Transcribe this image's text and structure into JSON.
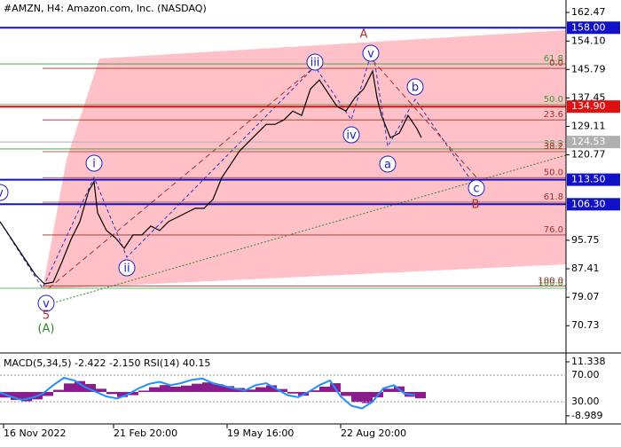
{
  "chart_data": {
    "type": "line",
    "title": "#AMZN, H4:  Amazon.com, Inc. (NASDAQ)",
    "series": [
      {
        "color": "#000000",
        "x": [
          0,
          2.5,
          5,
          7.5,
          10,
          12.5,
          15,
          17.5,
          20,
          22.5,
          25,
          26.5,
          27.5,
          30,
          32.5,
          35,
          37.5,
          40,
          42.5,
          45,
          47.5,
          50,
          52.5,
          55,
          57.5,
          60,
          62.5,
          65,
          67.5,
          70,
          72.5,
          75,
          77.5,
          80,
          82.5,
          85,
          87.5,
          90,
          92.5,
          95,
          97.5,
          100,
          102.5,
          105,
          106.25,
          107.5,
          110,
          112.5,
          115,
          117.5,
          118.75
        ],
        "values": [
          101.2,
          97.3,
          93.4,
          89.5,
          85.6,
          83.0,
          83.5,
          89.5,
          96.0,
          101.2,
          110.2,
          112.9,
          103.8,
          98.6,
          96.5,
          93.4,
          97.3,
          97.3,
          99.9,
          98.6,
          101.2,
          102.5,
          103.8,
          105.1,
          105.1,
          107.7,
          114.1,
          118.0,
          121.9,
          124.5,
          127.1,
          129.7,
          129.7,
          131.0,
          133.6,
          132.3,
          140.1,
          142.7,
          138.8,
          134.9,
          133.6,
          137.5,
          140.1,
          145.3,
          137.5,
          132.3,
          125.8,
          127.1,
          132.3,
          128.4,
          125.8
        ]
      }
    ],
    "xlim": [
      0,
      159.5
    ],
    "xticks": [
      {
        "value": 1,
        "label": "16 Nov 2022"
      },
      {
        "value": 32,
        "label": "21 Feb 20:00"
      },
      {
        "value": 64,
        "label": "19 May 16:00"
      },
      {
        "value": 96,
        "label": "22 Aug 20:00"
      }
    ],
    "ylim": [
      63.0,
      165.6
    ],
    "yticks": [
      162.47,
      {
        "value": 154.1,
        "label": "154.10"
      },
      145.79,
      137.45,
      129.11,
      120.77,
      95.75,
      87.41,
      79.07,
      70.73
    ],
    "levels": [
      {
        "value": 158,
        "label": "158.00",
        "color": "#1111c8"
      },
      {
        "value": 134.9,
        "label": "134.90",
        "color": "#e01010"
      },
      {
        "value": 124.53,
        "label": "124.53",
        "color": "#b0b0b0"
      },
      {
        "value": 113.5,
        "label": "113.50",
        "color": "#1111c8"
      },
      {
        "value": 106.3,
        "label": "106.30",
        "color": "#1111c8"
      }
    ],
    "fibo": [
      {
        "value": 147.4,
        "label": "61.8",
        "color": "#3a9a3a"
      },
      {
        "value": 135.5,
        "label": "50.0",
        "color": "#3a9a3a"
      },
      {
        "value": 122.5,
        "label": "38.2",
        "color": "#3a9a3a"
      },
      {
        "value": 81.7,
        "label": "100.0",
        "color": "#3a9a3a"
      },
      {
        "value": 146.1,
        "label": "0.0",
        "color": "#a0302a"
      },
      {
        "value": 131.0,
        "label": "23.6",
        "color": "#a0302a"
      },
      {
        "value": 121.7,
        "label": "38.2",
        "color": "#a0302a"
      },
      {
        "value": 114.1,
        "label": "50.0",
        "color": "#a0302a"
      },
      {
        "value": 106.9,
        "label": "61.8",
        "color": "#a0302a"
      },
      {
        "value": 97.3,
        "label": "76.0",
        "color": "#a0302a"
      },
      {
        "value": 82.4,
        "label": "100.0",
        "color": "#a0302a"
      }
    ],
    "waves": [
      "A",
      "v",
      "iii",
      "b",
      "iv",
      "a",
      "c",
      "B",
      "i",
      "ii",
      "v",
      "5",
      "(A)",
      "v"
    ],
    "indicator": {
      "title": "MACD(5,34,5) -2.422 -2.150 RSI(14) 40.15",
      "ylim": [
        -11.7,
        14.0
      ],
      "yticks": [
        11.338,
        -8.989
      ],
      "y2lim": [
        -2,
        100.7
      ],
      "y2ticks": [
        {
          "value": 70,
          "label": "70.00"
        },
        {
          "value": 30,
          "label": "30.00"
        }
      ],
      "x": [
        0,
        3,
        6,
        9,
        12,
        15,
        18,
        21,
        24,
        27,
        30,
        33,
        36,
        39,
        42,
        45,
        48,
        51,
        54,
        57,
        60,
        63,
        66,
        69,
        72,
        75,
        78,
        81,
        84,
        87,
        90,
        93,
        96,
        99,
        102,
        105,
        108,
        111,
        114,
        117
      ],
      "series": [
        {
          "color": "#8b1c8b",
          "values": [
            -2.1,
            -3.0,
            -3.5,
            -2.8,
            -1.5,
            0.8,
            3.2,
            4.1,
            3.0,
            1.2,
            -0.8,
            -1.9,
            -1.2,
            0.5,
            1.8,
            2.6,
            2.0,
            2.4,
            3.1,
            3.6,
            2.9,
            2.2,
            1.5,
            0.9,
            1.8,
            2.5,
            1.1,
            -0.6,
            -1.4,
            0.6,
            2.0,
            3.3,
            -1.5,
            -3.8,
            -4.2,
            -2.0,
            1.2,
            2.1,
            -1.8,
            -2.4
          ]
        },
        {
          "color": "#1e90ff",
          "axis": "y2",
          "values": [
            44,
            38,
            33,
            36,
            42,
            55,
            66,
            62,
            52,
            45,
            38,
            35,
            41,
            50,
            57,
            60,
            55,
            58,
            63,
            65,
            58,
            54,
            50,
            47,
            55,
            58,
            49,
            40,
            37,
            45,
            55,
            62,
            38,
            24,
            20,
            30,
            50,
            55,
            42,
            40
          ]
        }
      ]
    }
  }
}
